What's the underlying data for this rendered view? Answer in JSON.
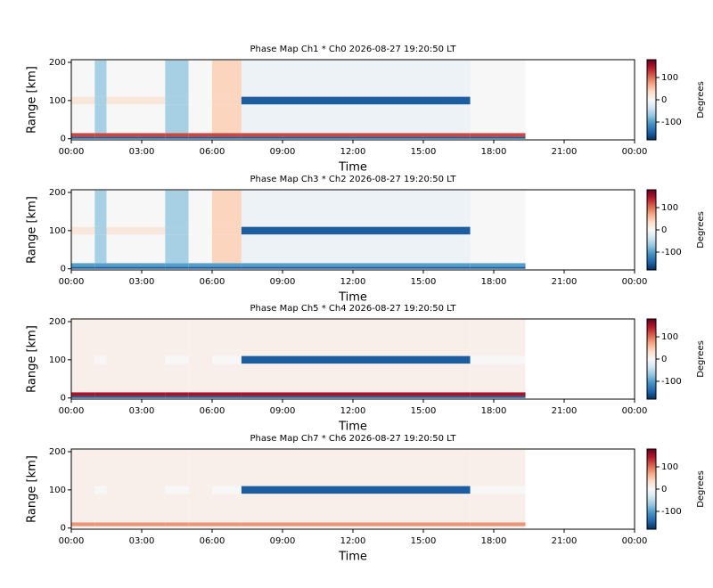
{
  "chart_data": [
    {
      "type": "heatmap",
      "title": "Phase Map Ch1 * Ch0 2026-08-27 19:20:50 LT",
      "xlabel": "Time",
      "ylabel": "Range [km]",
      "colorbar_label": "Degrees",
      "x_edges": [
        0,
        1,
        1.5,
        4,
        5,
        6,
        7.25,
        17,
        19.35
      ],
      "y_edges": [
        0,
        5,
        15,
        90,
        110,
        205
      ],
      "values": [
        [
          -150,
          -150,
          -150,
          -150,
          -150,
          -150,
          -150,
          -150
        ],
        [
          120,
          120,
          120,
          120,
          120,
          120,
          120,
          120
        ],
        [
          0,
          -60,
          0,
          -60,
          0,
          40,
          -10,
          0
        ],
        [
          20,
          -60,
          20,
          -60,
          0,
          40,
          -150,
          0
        ],
        [
          0,
          -60,
          0,
          -60,
          0,
          40,
          -10,
          0
        ]
      ],
      "xlim": [
        0,
        24
      ],
      "ylim": [
        -3,
        207
      ],
      "clim": [
        -180,
        180
      ],
      "xticks": [
        {
          "value": 0,
          "label": "00:00"
        },
        {
          "value": 3,
          "label": "03:00"
        },
        {
          "value": 6,
          "label": "06:00"
        },
        {
          "value": 9,
          "label": "09:00"
        },
        {
          "value": 12,
          "label": "12:00"
        },
        {
          "value": 15,
          "label": "15:00"
        },
        {
          "value": 18,
          "label": "18:00"
        },
        {
          "value": 21,
          "label": "21:00"
        },
        {
          "value": 24,
          "label": "00:00"
        }
      ],
      "yticks": [
        0,
        100,
        200
      ],
      "cticks": [
        -100,
        0,
        100
      ],
      "colormap": [
        "#053061",
        "#2166ac",
        "#4393c3",
        "#92c5de",
        "#d1e5f0",
        "#f7f7f7",
        "#fddbc7",
        "#f4a582",
        "#d6604d",
        "#b2182b",
        "#67001f"
      ]
    },
    {
      "type": "heatmap",
      "title": "Phase Map Ch3 * Ch2 2026-08-27 19:20:50 LT",
      "xlabel": "Time",
      "ylabel": "Range [km]",
      "colorbar_label": "Degrees",
      "x_edges": [
        0,
        1,
        1.5,
        4,
        5,
        6,
        7.25,
        17,
        19.35
      ],
      "y_edges": [
        0,
        5,
        15,
        90,
        110,
        205
      ],
      "values": [
        [
          -150,
          -150,
          -150,
          -150,
          -150,
          -150,
          -150,
          -150
        ],
        [
          -100,
          -100,
          -100,
          -100,
          -100,
          -100,
          -100,
          -100
        ],
        [
          0,
          -60,
          0,
          -60,
          0,
          40,
          -10,
          0
        ],
        [
          20,
          -60,
          20,
          -60,
          0,
          40,
          -150,
          0
        ],
        [
          0,
          -60,
          0,
          -60,
          0,
          40,
          -10,
          0
        ]
      ],
      "xlim": [
        0,
        24
      ],
      "ylim": [
        -3,
        207
      ],
      "clim": [
        -180,
        180
      ],
      "xticks": [
        {
          "value": 0,
          "label": "00:00"
        },
        {
          "value": 3,
          "label": "03:00"
        },
        {
          "value": 6,
          "label": "06:00"
        },
        {
          "value": 9,
          "label": "09:00"
        },
        {
          "value": 12,
          "label": "12:00"
        },
        {
          "value": 15,
          "label": "15:00"
        },
        {
          "value": 18,
          "label": "18:00"
        },
        {
          "value": 21,
          "label": "21:00"
        },
        {
          "value": 24,
          "label": "00:00"
        }
      ],
      "yticks": [
        0,
        100,
        200
      ],
      "cticks": [
        -100,
        0,
        100
      ],
      "colormap": [
        "#053061",
        "#2166ac",
        "#4393c3",
        "#92c5de",
        "#d1e5f0",
        "#f7f7f7",
        "#fddbc7",
        "#f4a582",
        "#d6604d",
        "#b2182b",
        "#67001f"
      ]
    },
    {
      "type": "heatmap",
      "title": "Phase Map Ch5 * Ch4 2026-08-27 19:20:50 LT",
      "xlabel": "Time",
      "ylabel": "Range [km]",
      "colorbar_label": "Degrees",
      "x_edges": [
        0,
        1,
        1.5,
        4,
        5,
        6,
        7.25,
        17,
        19.35
      ],
      "y_edges": [
        0,
        5,
        15,
        90,
        110,
        205
      ],
      "values": [
        [
          -150,
          -150,
          -150,
          -150,
          -150,
          -150,
          -150,
          -150
        ],
        [
          150,
          150,
          150,
          150,
          150,
          150,
          150,
          150
        ],
        [
          10,
          10,
          10,
          10,
          10,
          10,
          10,
          10
        ],
        [
          10,
          0,
          10,
          0,
          10,
          0,
          -150,
          0
        ],
        [
          10,
          10,
          10,
          10,
          10,
          10,
          10,
          10
        ]
      ],
      "xlim": [
        0,
        24
      ],
      "ylim": [
        -3,
        207
      ],
      "clim": [
        -180,
        180
      ],
      "xticks": [
        {
          "value": 0,
          "label": "00:00"
        },
        {
          "value": 3,
          "label": "03:00"
        },
        {
          "value": 6,
          "label": "06:00"
        },
        {
          "value": 9,
          "label": "09:00"
        },
        {
          "value": 12,
          "label": "12:00"
        },
        {
          "value": 15,
          "label": "15:00"
        },
        {
          "value": 18,
          "label": "18:00"
        },
        {
          "value": 21,
          "label": "21:00"
        },
        {
          "value": 24,
          "label": "00:00"
        }
      ],
      "yticks": [
        0,
        100,
        200
      ],
      "cticks": [
        -100,
        0,
        100
      ],
      "colormap": [
        "#053061",
        "#2166ac",
        "#4393c3",
        "#92c5de",
        "#d1e5f0",
        "#f7f7f7",
        "#fddbc7",
        "#f4a582",
        "#d6604d",
        "#b2182b",
        "#67001f"
      ]
    },
    {
      "type": "heatmap",
      "title": "Phase Map Ch7 * Ch6 2026-08-27 19:20:50 LT",
      "xlabel": "Time",
      "ylabel": "Range [km]",
      "colorbar_label": "Degrees",
      "x_edges": [
        0,
        1,
        1.5,
        4,
        5,
        6,
        7.25,
        17,
        19.35
      ],
      "y_edges": [
        0,
        5,
        15,
        90,
        110,
        205
      ],
      "values": [
        [
          10,
          10,
          10,
          10,
          10,
          10,
          10,
          10
        ],
        [
          80,
          80,
          80,
          80,
          80,
          80,
          80,
          80
        ],
        [
          10,
          10,
          10,
          10,
          10,
          10,
          10,
          10
        ],
        [
          10,
          0,
          10,
          0,
          10,
          0,
          -150,
          0
        ],
        [
          10,
          10,
          10,
          10,
          10,
          10,
          10,
          10
        ]
      ],
      "xlim": [
        0,
        24
      ],
      "ylim": [
        -3,
        207
      ],
      "clim": [
        -180,
        180
      ],
      "xticks": [
        {
          "value": 0,
          "label": "00:00"
        },
        {
          "value": 3,
          "label": "03:00"
        },
        {
          "value": 6,
          "label": "06:00"
        },
        {
          "value": 9,
          "label": "09:00"
        },
        {
          "value": 12,
          "label": "12:00"
        },
        {
          "value": 15,
          "label": "15:00"
        },
        {
          "value": 18,
          "label": "18:00"
        },
        {
          "value": 21,
          "label": "21:00"
        },
        {
          "value": 24,
          "label": "00:00"
        }
      ],
      "yticks": [
        0,
        100,
        200
      ],
      "cticks": [
        -100,
        0,
        100
      ],
      "colormap": [
        "#053061",
        "#2166ac",
        "#4393c3",
        "#92c5de",
        "#d1e5f0",
        "#f7f7f7",
        "#fddbc7",
        "#f4a582",
        "#d6604d",
        "#b2182b",
        "#67001f"
      ]
    }
  ]
}
